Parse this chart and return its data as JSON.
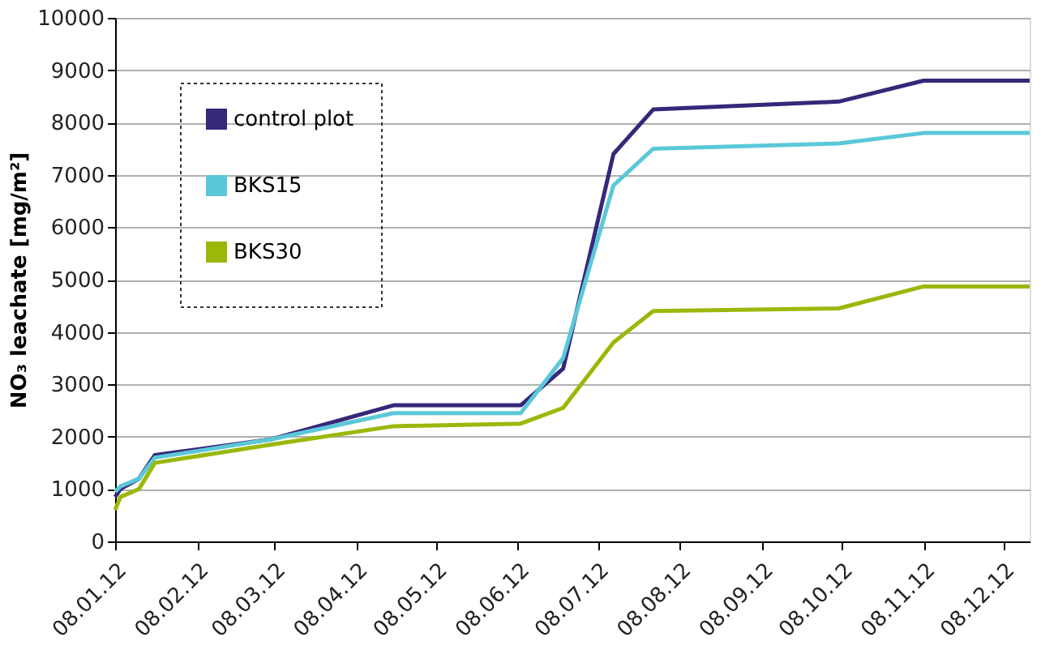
{
  "chart_data": {
    "type": "line",
    "ylabel": "NO₃ leachate [mg/m²]",
    "x": [
      "2012-01-08",
      "2012-01-10",
      "2012-01-17",
      "2012-01-23",
      "2012-03-07",
      "2012-04-22",
      "2012-06-09",
      "2012-06-25",
      "2012-07-14",
      "2012-07-29",
      "2012-10-07",
      "2012-11-08",
      "2012-12-18"
    ],
    "series": [
      {
        "name": "control plot",
        "color": "#35287a",
        "values": [
          850,
          1000,
          1200,
          1650,
          1950,
          2600,
          2600,
          3300,
          7400,
          8250,
          8400,
          8800,
          8800
        ]
      },
      {
        "name": "BKS15",
        "color": "#5bc8d8",
        "values": [
          950,
          1050,
          1200,
          1600,
          1950,
          2450,
          2450,
          3500,
          6800,
          7500,
          7600,
          7800,
          7800
        ]
      },
      {
        "name": "BKS30",
        "color": "#9ab80a",
        "values": [
          600,
          850,
          1000,
          1500,
          1850,
          2200,
          2250,
          2550,
          3800,
          4400,
          4450,
          4870,
          4870
        ]
      }
    ],
    "xlim": [
      "2012-01-08",
      "2012-12-18"
    ],
    "xticks": [
      {
        "value": "2012-01-08",
        "label": "08.01.12"
      },
      {
        "value": "2012-02-08",
        "label": "08.02.12"
      },
      {
        "value": "2012-03-08",
        "label": "08.03.12"
      },
      {
        "value": "2012-04-08",
        "label": "08.04.12"
      },
      {
        "value": "2012-05-08",
        "label": "08.05.12"
      },
      {
        "value": "2012-06-08",
        "label": "08.06.12"
      },
      {
        "value": "2012-07-08",
        "label": "08.07.12"
      },
      {
        "value": "2012-08-08",
        "label": "08.08.12"
      },
      {
        "value": "2012-09-08",
        "label": "08.09.12"
      },
      {
        "value": "2012-10-08",
        "label": "08.10.12"
      },
      {
        "value": "2012-11-08",
        "label": "08.11.12"
      },
      {
        "value": "2012-12-08",
        "label": "08.12.12"
      }
    ],
    "ylim": [
      0,
      10000
    ],
    "yticks": [
      0,
      1000,
      2000,
      3000,
      4000,
      5000,
      6000,
      7000,
      8000,
      9000,
      10000
    ],
    "grid": "y",
    "legend": "top left",
    "marker": "none",
    "line_style": "solid"
  }
}
